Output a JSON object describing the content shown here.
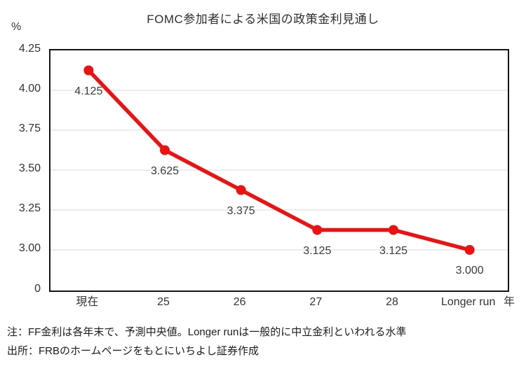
{
  "chart_data": {
    "type": "line",
    "title": "FOMC参加者による米国の政策金利見通し",
    "categories": [
      "現在",
      "25",
      "26",
      "27",
      "28",
      "Longer run"
    ],
    "values": [
      4.125,
      3.625,
      3.375,
      3.125,
      3.125,
      3.0
    ],
    "data_labels": [
      "4.125",
      "3.625",
      "3.375",
      "3.125",
      "3.125",
      "3.000"
    ],
    "y_axis": {
      "unit": "%",
      "tick_labels": [
        "4.25",
        "4.00",
        "3.75",
        "3.50",
        "3.25",
        "3.00",
        "0"
      ],
      "tick_values": [
        4.25,
        4.0,
        3.75,
        3.5,
        3.25,
        3.0,
        0
      ],
      "top_value": 4.25,
      "step": 0.25,
      "axis_break_to_zero": true
    },
    "x_axis": {
      "unit": "年"
    },
    "grid": true,
    "legend": "none",
    "line_color": "#ed1111",
    "grid_color": "#d9d9d9",
    "border_color": "#141414"
  },
  "notes": [
    "注：FF金利は各年末で、予測中央値。Longer runは一般的に中立金利といわれる水準",
    "出所：FRBのホームページをもとにいちよし証券作成"
  ]
}
